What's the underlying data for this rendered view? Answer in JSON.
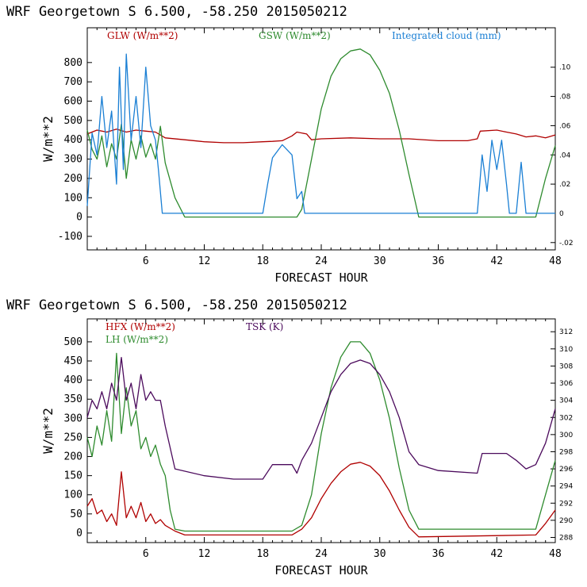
{
  "chart_data": [
    {
      "type": "line",
      "title": "WRF   Georgetown S   6.500, -58.250  2015050212",
      "xlabel": "FORECAST HOUR",
      "ylabel": "W/m**2",
      "xlim": [
        0,
        48
      ],
      "xticks": [
        6,
        12,
        18,
        24,
        30,
        36,
        42,
        48
      ],
      "ylim": [
        -170,
        980
      ],
      "yticks": [
        -100,
        0,
        100,
        200,
        300,
        400,
        500,
        600,
        700,
        800
      ],
      "y2lim": [
        -0.025,
        0.127
      ],
      "y2ticks": [
        -0.02,
        0,
        0.02,
        0.04,
        0.06,
        0.08,
        0.1
      ],
      "y2ticklabels": [
        "-.02",
        "0",
        ".02",
        ".04",
        ".06",
        ".08",
        ".10"
      ],
      "series": [
        {
          "name": "GLW (W/m**2)",
          "color": "#b00000",
          "axis": "left",
          "points": [
            [
              0,
              430
            ],
            [
              1,
              450
            ],
            [
              2,
              440
            ],
            [
              3,
              455
            ],
            [
              4,
              440
            ],
            [
              5,
              450
            ],
            [
              6,
              445
            ],
            [
              7,
              440
            ],
            [
              8,
              410
            ],
            [
              10,
              400
            ],
            [
              12,
              390
            ],
            [
              14,
              385
            ],
            [
              16,
              385
            ],
            [
              18,
              390
            ],
            [
              19,
              392
            ],
            [
              20,
              395
            ],
            [
              21,
              420
            ],
            [
              21.5,
              440
            ],
            [
              22.5,
              430
            ],
            [
              23,
              400
            ],
            [
              24,
              405
            ],
            [
              27,
              410
            ],
            [
              30,
              405
            ],
            [
              33,
              405
            ],
            [
              36,
              395
            ],
            [
              39,
              395
            ],
            [
              40,
              405
            ],
            [
              40.3,
              445
            ],
            [
              42,
              450
            ],
            [
              43,
              440
            ],
            [
              44,
              430
            ],
            [
              45,
              415
            ],
            [
              46,
              420
            ],
            [
              47,
              410
            ],
            [
              48,
              425
            ]
          ]
        },
        {
          "name": "GSW (W/m**2)",
          "color": "#2e8b2e",
          "axis": "left",
          "points": [
            [
              0,
              450
            ],
            [
              0.5,
              350
            ],
            [
              1,
              300
            ],
            [
              1.5,
              420
            ],
            [
              2,
              260
            ],
            [
              2.5,
              380
            ],
            [
              3,
              300
            ],
            [
              3.5,
              480
            ],
            [
              4,
              200
            ],
            [
              4.5,
              400
            ],
            [
              5,
              300
            ],
            [
              5.5,
              420
            ],
            [
              6,
              310
            ],
            [
              6.5,
              380
            ],
            [
              7,
              300
            ],
            [
              7.5,
              470
            ],
            [
              8,
              280
            ],
            [
              9,
              100
            ],
            [
              10,
              0
            ],
            [
              21.5,
              0
            ],
            [
              22,
              40
            ],
            [
              23,
              300
            ],
            [
              24,
              560
            ],
            [
              25,
              730
            ],
            [
              26,
              820
            ],
            [
              27,
              860
            ],
            [
              28,
              870
            ],
            [
              29,
              840
            ],
            [
              30,
              760
            ],
            [
              31,
              640
            ],
            [
              32,
              450
            ],
            [
              33,
              220
            ],
            [
              34,
              0
            ],
            [
              46,
              0
            ],
            [
              47,
              200
            ],
            [
              48,
              370
            ]
          ]
        },
        {
          "name": "Integrated cloud (mm)",
          "color": "#1a7fd4",
          "axis": "right",
          "points": [
            [
              0,
              0.005
            ],
            [
              0.5,
              0.055
            ],
            [
              1,
              0.04
            ],
            [
              1.5,
              0.08
            ],
            [
              2,
              0.045
            ],
            [
              2.5,
              0.07
            ],
            [
              3,
              0.02
            ],
            [
              3.3,
              0.1
            ],
            [
              3.7,
              0.03
            ],
            [
              4,
              0.109
            ],
            [
              4.5,
              0.05
            ],
            [
              5,
              0.08
            ],
            [
              5.5,
              0.045
            ],
            [
              6,
              0.1
            ],
            [
              6.5,
              0.06
            ],
            [
              7,
              0.05
            ],
            [
              7.3,
              0.03
            ],
            [
              7.7,
              0
            ],
            [
              18,
              0
            ],
            [
              18.5,
              0.02
            ],
            [
              19,
              0.038
            ],
            [
              20,
              0.047
            ],
            [
              21,
              0.04
            ],
            [
              21.5,
              0.01
            ],
            [
              22,
              0.015
            ],
            [
              22.3,
              0
            ],
            [
              40,
              0
            ],
            [
              40.5,
              0.04
            ],
            [
              41,
              0.015
            ],
            [
              41.5,
              0.05
            ],
            [
              42,
              0.03
            ],
            [
              42.5,
              0.05
            ],
            [
              43,
              0.02
            ],
            [
              43.3,
              0
            ],
            [
              44,
              0
            ],
            [
              44.5,
              0.035
            ],
            [
              45,
              0
            ],
            [
              48,
              0
            ]
          ]
        }
      ]
    },
    {
      "type": "line",
      "title": "WRF   Georgetown S   6.500, -58.250  2015050212",
      "xlabel": "FORECAST HOUR",
      "ylabel": "W/m**2",
      "xlim": [
        0,
        48
      ],
      "xticks": [
        6,
        12,
        18,
        24,
        30,
        36,
        42,
        48
      ],
      "ylim": [
        -25,
        560
      ],
      "yticks": [
        0,
        50,
        100,
        150,
        200,
        250,
        300,
        350,
        400,
        450,
        500
      ],
      "y2lim": [
        287.4,
        313.5
      ],
      "y2ticks": [
        288,
        290,
        292,
        294,
        296,
        298,
        300,
        302,
        304,
        306,
        308,
        310,
        312
      ],
      "series": [
        {
          "name": "HFX (W/m**2)",
          "color": "#b00000",
          "axis": "left",
          "points": [
            [
              0,
              70
            ],
            [
              0.5,
              90
            ],
            [
              1,
              50
            ],
            [
              1.5,
              60
            ],
            [
              2,
              30
            ],
            [
              2.5,
              50
            ],
            [
              3,
              20
            ],
            [
              3.5,
              160
            ],
            [
              4,
              40
            ],
            [
              4.5,
              70
            ],
            [
              5,
              40
            ],
            [
              5.5,
              80
            ],
            [
              6,
              30
            ],
            [
              6.5,
              50
            ],
            [
              7,
              25
            ],
            [
              7.5,
              35
            ],
            [
              8,
              20
            ],
            [
              9,
              5
            ],
            [
              10,
              -5
            ],
            [
              21,
              -5
            ],
            [
              22,
              10
            ],
            [
              23,
              40
            ],
            [
              24,
              90
            ],
            [
              25,
              130
            ],
            [
              26,
              160
            ],
            [
              27,
              180
            ],
            [
              28,
              185
            ],
            [
              29,
              175
            ],
            [
              30,
              150
            ],
            [
              31,
              110
            ],
            [
              32,
              60
            ],
            [
              33,
              15
            ],
            [
              34,
              -10
            ],
            [
              46,
              -5
            ],
            [
              47,
              25
            ],
            [
              48,
              60
            ]
          ]
        },
        {
          "name": "LH  (W/m**2)",
          "color": "#2e8b2e",
          "axis": "left",
          "points": [
            [
              0,
              250
            ],
            [
              0.5,
              200
            ],
            [
              1,
              280
            ],
            [
              1.5,
              230
            ],
            [
              2,
              320
            ],
            [
              2.5,
              240
            ],
            [
              3,
              470
            ],
            [
              3.5,
              260
            ],
            [
              4,
              380
            ],
            [
              4.5,
              280
            ],
            [
              5,
              320
            ],
            [
              5.5,
              220
            ],
            [
              6,
              250
            ],
            [
              6.5,
              200
            ],
            [
              7,
              230
            ],
            [
              7.5,
              180
            ],
            [
              8,
              150
            ],
            [
              8.5,
              60
            ],
            [
              9,
              10
            ],
            [
              10,
              5
            ],
            [
              21,
              5
            ],
            [
              22,
              20
            ],
            [
              23,
              100
            ],
            [
              24,
              260
            ],
            [
              25,
              380
            ],
            [
              26,
              460
            ],
            [
              27,
              500
            ],
            [
              28,
              500
            ],
            [
              29,
              470
            ],
            [
              30,
              400
            ],
            [
              31,
              300
            ],
            [
              32,
              170
            ],
            [
              33,
              60
            ],
            [
              34,
              10
            ],
            [
              46,
              10
            ],
            [
              47,
              100
            ],
            [
              48,
              190
            ]
          ]
        },
        {
          "name": "TSK (K)",
          "color": "#4b0a5c",
          "axis": "right",
          "points": [
            [
              0,
              302
            ],
            [
              0.5,
              304
            ],
            [
              1,
              303
            ],
            [
              1.5,
              305
            ],
            [
              2,
              303
            ],
            [
              2.5,
              306
            ],
            [
              3,
              304
            ],
            [
              3.5,
              309
            ],
            [
              4,
              304
            ],
            [
              4.5,
              306
            ],
            [
              5,
              303
            ],
            [
              5.5,
              307
            ],
            [
              6,
              304
            ],
            [
              6.5,
              305
            ],
            [
              7,
              304
            ],
            [
              7.5,
              304
            ],
            [
              8,
              301
            ],
            [
              9,
              296
            ],
            [
              12,
              295.2
            ],
            [
              15,
              294.8
            ],
            [
              18,
              294.8
            ],
            [
              19,
              296.5
            ],
            [
              21,
              296.5
            ],
            [
              21.5,
              295.5
            ],
            [
              22,
              297
            ],
            [
              23,
              299
            ],
            [
              24,
              302
            ],
            [
              25,
              305
            ],
            [
              26,
              307
            ],
            [
              27,
              308.3
            ],
            [
              28,
              308.7
            ],
            [
              29,
              308.3
            ],
            [
              30,
              307
            ],
            [
              31,
              305
            ],
            [
              32,
              302
            ],
            [
              33,
              298
            ],
            [
              34,
              296.5
            ],
            [
              36,
              295.8
            ],
            [
              40,
              295.5
            ],
            [
              40.5,
              297.8
            ],
            [
              43,
              297.8
            ],
            [
              44,
              297
            ],
            [
              45,
              296
            ],
            [
              46,
              296.5
            ],
            [
              47,
              299
            ],
            [
              48,
              303
            ]
          ]
        }
      ]
    }
  ]
}
